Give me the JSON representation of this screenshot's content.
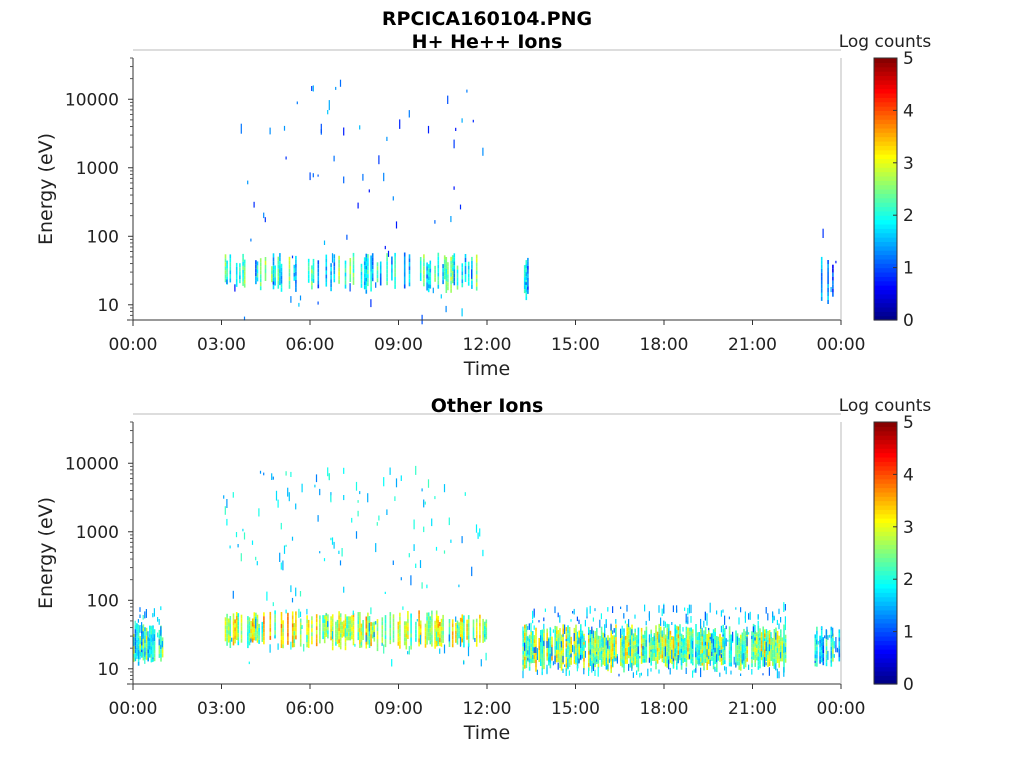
{
  "figure_title": "RPCICA160104.PNG",
  "colorbar": {
    "label": "Log counts",
    "ticks": [
      "0",
      "1",
      "2",
      "3",
      "4",
      "5"
    ],
    "range": [
      0,
      5
    ],
    "colormap": "jet"
  },
  "chart_data": [
    {
      "type": "heatmap",
      "title": "H+ He++ Ions",
      "xlabel": "Time",
      "ylabel": "Energy (eV)",
      "x_ticks": [
        "00:00",
        "03:00",
        "06:00",
        "09:00",
        "12:00",
        "15:00",
        "18:00",
        "21:00",
        "00:00"
      ],
      "xlim_hours": [
        0,
        24
      ],
      "y_ticks": [
        "10",
        "100",
        "1000",
        "10000"
      ],
      "y_scale": "log",
      "ylim": [
        6,
        40000
      ],
      "clim": [
        0,
        5
      ],
      "activity": [
        {
          "start": 3.0,
          "end": 12.0,
          "e_low": 6,
          "e_high": 20000,
          "band_low": 20,
          "band_high": 45,
          "band_level": 2.0,
          "sparse_level": 0.7,
          "density": 0.35
        },
        {
          "start": 13.25,
          "end": 13.4,
          "e_low": 15,
          "e_high": 40,
          "band_low": 15,
          "band_high": 40,
          "band_level": 1.5,
          "sparse_level": 0.5,
          "density": 0.8
        },
        {
          "start": 23.1,
          "end": 24.0,
          "e_low": 6,
          "e_high": 15000,
          "band_low": 12,
          "band_high": 40,
          "band_level": 1.0,
          "sparse_level": 0.6,
          "density": 0.3
        }
      ]
    },
    {
      "type": "heatmap",
      "title": "Other Ions",
      "xlabel": "Time",
      "ylabel": "Energy (eV)",
      "x_ticks": [
        "00:00",
        "03:00",
        "06:00",
        "09:00",
        "12:00",
        "15:00",
        "18:00",
        "21:00",
        "00:00"
      ],
      "xlim_hours": [
        0,
        24
      ],
      "y_ticks": [
        "10",
        "100",
        "1000",
        "10000"
      ],
      "y_scale": "log",
      "ylim": [
        6,
        40000
      ],
      "clim": [
        0,
        5
      ],
      "activity": [
        {
          "start": 0.0,
          "end": 1.0,
          "e_low": 12,
          "e_high": 80,
          "band_low": 14,
          "band_high": 35,
          "band_level": 2.2,
          "sparse_level": 1.2,
          "density": 0.85
        },
        {
          "start": 3.0,
          "end": 12.0,
          "e_low": 12,
          "e_high": 8000,
          "band_low": 25,
          "band_high": 55,
          "band_level": 2.8,
          "sparse_level": 1.2,
          "density": 0.55
        },
        {
          "start": 13.2,
          "end": 22.1,
          "e_low": 8,
          "e_high": 80,
          "band_low": 12,
          "band_high": 35,
          "band_level": 2.6,
          "sparse_level": 1.0,
          "density": 0.9
        },
        {
          "start": 23.1,
          "end": 24.0,
          "e_low": 12,
          "e_high": 40,
          "band_low": 12,
          "band_high": 35,
          "band_level": 1.8,
          "sparse_level": 1.0,
          "density": 0.6
        }
      ]
    }
  ]
}
